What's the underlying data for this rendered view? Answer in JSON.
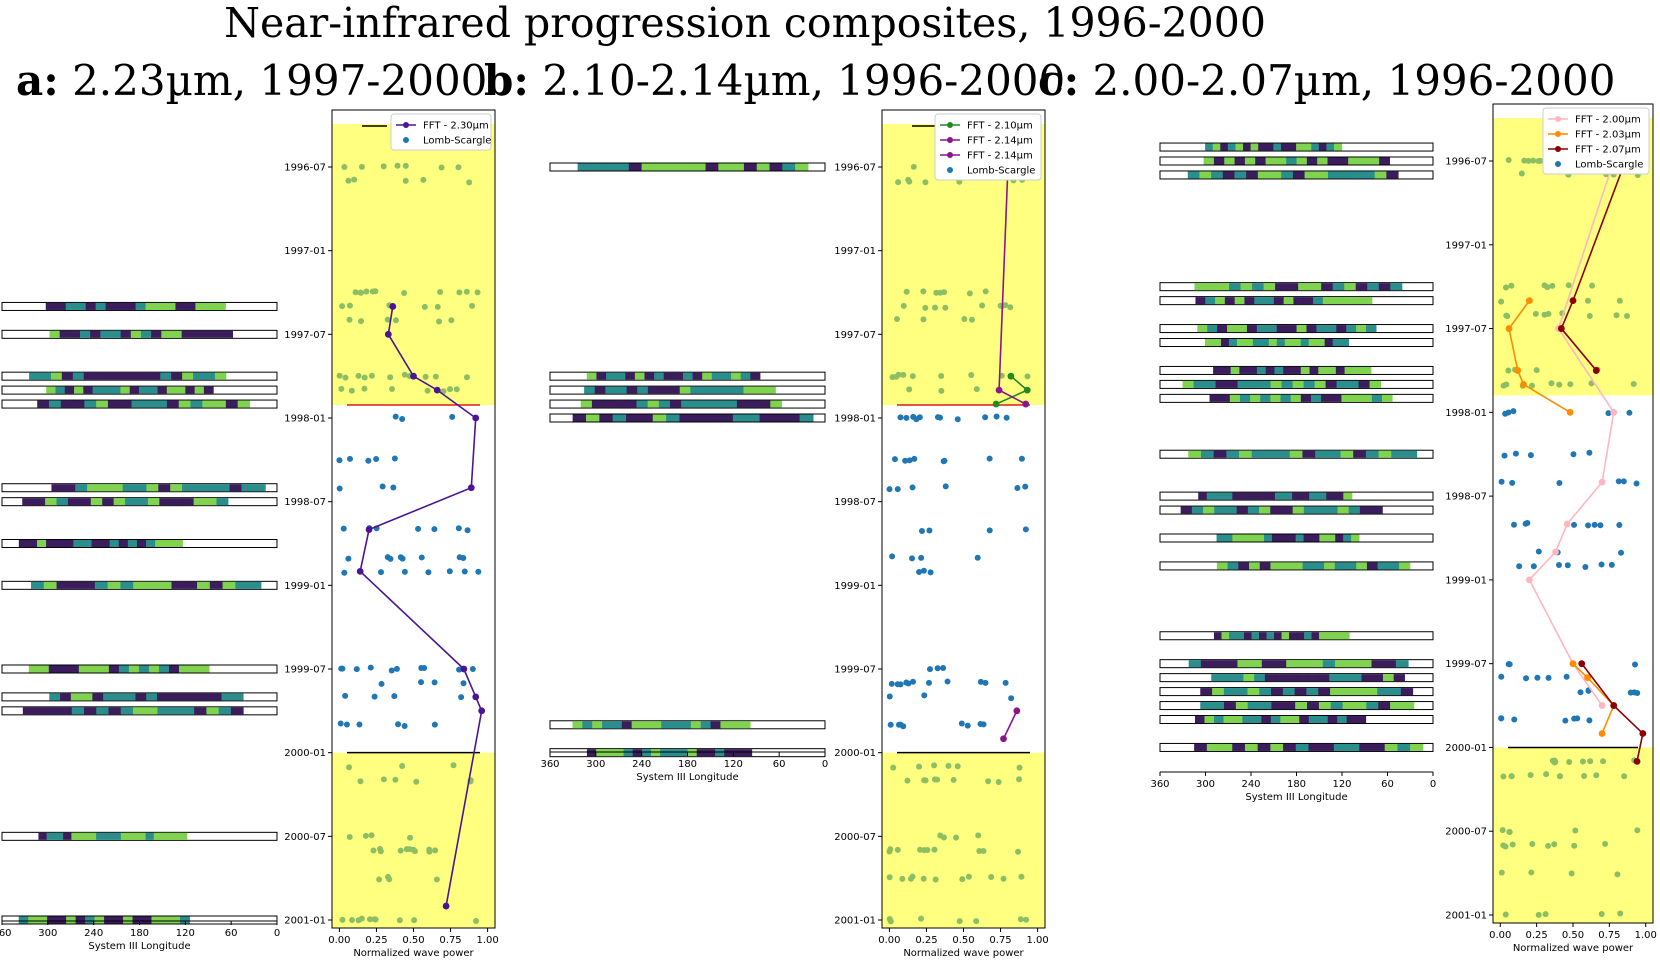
{
  "title": "Near-infrared progression composites, 1996-2000",
  "panels": [
    {
      "letter": "a:",
      "subtitle": "2.23µm, 1997-2000"
    },
    {
      "letter": "b:",
      "subtitle": "2.10-2.14µm, 1996-2000"
    },
    {
      "letter": "c:",
      "subtitle": "2.00-2.07µm, 1996-2000"
    }
  ],
  "colors": {
    "highlight": "#ffff80",
    "lomb_scargle": "#1f77b4",
    "lomb_scargle_highlight": "#8cbf63",
    "divider_red": "#e31a1c",
    "strip_dark": "#3b1d5e",
    "strip_mid": "#2a8f8c",
    "strip_light": "#7fd34e"
  },
  "chart_data": [
    {
      "type": "scatter",
      "panel": "a",
      "xlabel": "Normalized wave power",
      "strip_xlabel": "System III Longitude",
      "strip_ticks": [
        "360",
        "300",
        "240",
        "180",
        "120",
        "60",
        "0"
      ],
      "x_ticks": [
        "0.00",
        "0.25",
        "0.50",
        "0.75",
        "1.00"
      ],
      "xlim": [
        -0.05,
        1.05
      ],
      "date_ticks": [
        "1996-07",
        "1997-01",
        "1997-07",
        "1998-01",
        "1998-07",
        "1999-01",
        "1999-07",
        "2000-01",
        "2000-07",
        "2001-01"
      ],
      "ylim": [
        "1996-03",
        "2001-01"
      ],
      "highlight_ranges": [
        [
          "1996-04",
          "1997-12"
        ],
        [
          "2000-01",
          "2001-01"
        ]
      ],
      "legend": [
        "FFT - 2.30µm",
        "Lomb-Scargle"
      ],
      "series": [
        {
          "name": "FFT - 2.30µm",
          "color": "#4b1694",
          "points": [
            [
              0.36,
              "1997-05"
            ],
            [
              0.33,
              "1997-07"
            ],
            [
              0.5,
              "1997-10"
            ],
            [
              0.66,
              "1997-11"
            ],
            [
              0.92,
              "1998-01"
            ],
            [
              0.89,
              "1998-06"
            ],
            [
              0.2,
              "1998-09"
            ],
            [
              0.14,
              "1998-12"
            ],
            [
              0.84,
              "1999-07"
            ],
            [
              0.92,
              "1999-09"
            ],
            [
              0.96,
              "1999-10"
            ],
            [
              0.72,
              "2000-12"
            ]
          ]
        }
      ],
      "strip_dates": [
        "1997-05",
        "1997-07",
        "1997-10",
        "1997-11",
        "1997-12",
        "1998-06",
        "1998-07",
        "1998-10",
        "1999-01",
        "1999-07",
        "1999-09",
        "1999-10",
        "2000-07",
        "2001-01"
      ]
    },
    {
      "type": "scatter",
      "panel": "b",
      "xlabel": "Normalized wave power",
      "strip_xlabel": "System III Longitude",
      "strip_ticks": [
        "360",
        "300",
        "240",
        "180",
        "120",
        "60",
        "0"
      ],
      "x_ticks": [
        "0.00",
        "0.25",
        "0.50",
        "0.75",
        "1.00"
      ],
      "date_ticks": [
        "1996-07",
        "1997-01",
        "1997-07",
        "1998-01",
        "1998-07",
        "1999-01",
        "1999-07",
        "2000-01",
        "2000-07",
        "2001-01"
      ],
      "legend": [
        "FFT - 2.10µm",
        "FFT - 2.14µm",
        "FFT - 2.14µm",
        "Lomb-Scargle"
      ],
      "series": [
        {
          "name": "FFT - 2.10µm",
          "color": "#218a21",
          "points": [
            [
              0.82,
              "1997-10"
            ],
            [
              0.93,
              "1997-11"
            ],
            [
              0.72,
              "1997-12"
            ]
          ]
        },
        {
          "name": "FFT - 2.14µm",
          "color": "#8b168b",
          "points": [
            [
              0.8,
              "1996-07"
            ],
            [
              0.74,
              "1997-11"
            ],
            [
              0.92,
              "1997-12"
            ]
          ]
        },
        {
          "name": "FFT - 2.14µm",
          "color": "#8b168b",
          "points": [
            [
              0.86,
              "1999-10"
            ],
            [
              0.77,
              "1999-12"
            ]
          ]
        }
      ]
    },
    {
      "type": "scatter",
      "panel": "c",
      "xlabel": "Normalized wave power",
      "strip_xlabel": "System III Longitude",
      "strip_ticks": [
        "360",
        "300",
        "240",
        "180",
        "120",
        "60",
        "0"
      ],
      "x_ticks": [
        "0.00",
        "0.25",
        "0.50",
        "0.75",
        "1.00"
      ],
      "date_ticks": [
        "1996-07",
        "1997-01",
        "1997-07",
        "1998-01",
        "1998-07",
        "1999-01",
        "1999-07",
        "2000-01",
        "2000-07",
        "2001-01"
      ],
      "legend": [
        "FFT - 2.00µm",
        "FFT - 2.03µm",
        "FFT - 2.07µm",
        "Lomb-Scargle"
      ],
      "series": [
        {
          "name": "FFT - 2.00µm",
          "color": "#ffb6c1",
          "points": [
            [
              0.78,
              "1996-07"
            ],
            [
              0.4,
              "1997-07"
            ],
            [
              0.78,
              "1998-01"
            ],
            [
              0.7,
              "1998-06"
            ],
            [
              0.46,
              "1998-09"
            ],
            [
              0.38,
              "1998-11"
            ],
            [
              0.2,
              "1999-01"
            ],
            [
              0.5,
              "1999-07"
            ],
            [
              0.7,
              "1999-10"
            ]
          ]
        },
        {
          "name": "FFT - 2.03µm",
          "color": "#ff8c00",
          "points": [
            [
              0.2,
              "1997-05"
            ],
            [
              0.06,
              "1997-07"
            ],
            [
              0.12,
              "1997-10"
            ],
            [
              0.16,
              "1997-11"
            ],
            [
              0.48,
              "1998-01"
            ]
          ]
        },
        {
          "name": "FFT - 2.03µm",
          "color": "#ff8c00",
          "points": [
            [
              0.5,
              "1999-07"
            ],
            [
              0.6,
              "1999-08"
            ],
            [
              0.78,
              "1999-10"
            ],
            [
              0.7,
              "1999-12"
            ]
          ]
        },
        {
          "name": "FFT - 2.07µm",
          "color": "#8b0000",
          "points": [
            [
              0.86,
              "1996-07"
            ],
            [
              0.5,
              "1997-05"
            ],
            [
              0.42,
              "1997-07"
            ],
            [
              0.66,
              "1997-10"
            ]
          ]
        },
        {
          "name": "FFT - 2.07µm",
          "color": "#8b0000",
          "points": [
            [
              0.56,
              "1999-07"
            ],
            [
              0.78,
              "1999-10"
            ],
            [
              0.98,
              "1999-12"
            ],
            [
              0.94,
              "2000-02"
            ]
          ]
        }
      ]
    }
  ]
}
